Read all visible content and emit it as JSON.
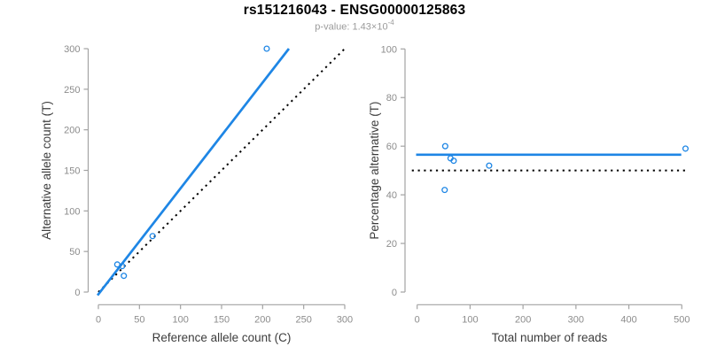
{
  "header": {
    "title": "rs151216043 - ENSG00000125863",
    "p_value_base": "p-value: 1.43×10",
    "p_value_exponent": "-4"
  },
  "colors": {
    "accent_blue": "#1E86E5",
    "reference_black": "#000000",
    "axis_line_gray": "#A3A3A3",
    "tick_label_gray": "#8C8C8C",
    "axis_title_gray": "#3C3C3C",
    "subtitle_gray": "#9B9B9B",
    "background": "#FFFFFF"
  },
  "chart_data": [
    {
      "type": "scatter",
      "name": "allele-counts-plot",
      "xlabel": "Reference allele count (C)",
      "ylabel": "Alternative allele count (T)",
      "xlim": [
        0,
        300
      ],
      "ylim": [
        0,
        300
      ],
      "xticks": [
        0,
        50,
        100,
        150,
        200,
        250,
        300
      ],
      "yticks": [
        0,
        50,
        100,
        150,
        200,
        250,
        300
      ],
      "grid": false,
      "legend": false,
      "points": [
        [
          23,
          34
        ],
        [
          29,
          32
        ],
        [
          31,
          20
        ],
        [
          66,
          69
        ],
        [
          205,
          300
        ]
      ],
      "point_style": "open-circle",
      "lines": [
        {
          "name": "identity-line",
          "style": "dotted",
          "color": "#000000",
          "x1": 0,
          "y1": 0,
          "x2": 301,
          "y2": 301
        },
        {
          "name": "fit-line",
          "style": "solid",
          "color": "#1E86E5",
          "x1": -1,
          "y1": -4,
          "x2": 232,
          "y2": 300
        }
      ]
    },
    {
      "type": "scatter",
      "name": "percentage-alternative-plot",
      "xlabel": "Total number of reads",
      "ylabel": "Percentage alternative (T)",
      "xlim": [
        0,
        500
      ],
      "ylim": [
        0,
        100
      ],
      "xticks": [
        0,
        100,
        200,
        300,
        400,
        500
      ],
      "yticks": [
        0,
        20,
        40,
        60,
        80,
        100
      ],
      "grid": false,
      "legend": false,
      "points": [
        [
          52,
          42
        ],
        [
          53,
          60
        ],
        [
          63,
          55
        ],
        [
          69,
          54
        ],
        [
          136,
          52
        ],
        [
          507,
          59
        ]
      ],
      "point_style": "open-circle",
      "lines": [
        {
          "name": "null-line",
          "style": "dotted",
          "color": "#000000",
          "x1": -10,
          "y1": 50,
          "x2": 507,
          "y2": 50
        },
        {
          "name": "fit-line",
          "style": "solid",
          "color": "#1E86E5",
          "x1": -2,
          "y1": 56.5,
          "x2": 499,
          "y2": 56.5
        }
      ]
    }
  ]
}
